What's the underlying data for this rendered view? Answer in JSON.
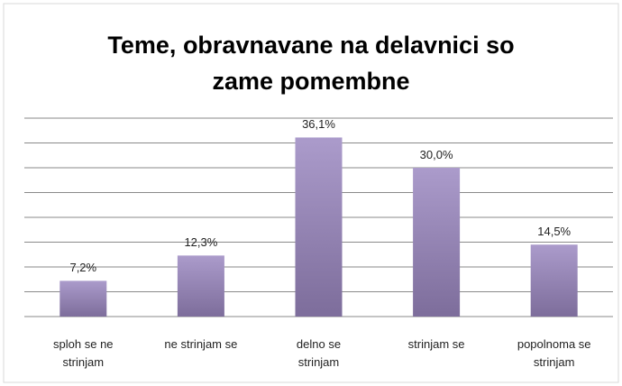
{
  "chart_data": {
    "type": "bar",
    "title": "Teme, obravnavane na delavnici so zame pomembne",
    "categories": [
      "sploh se ne\nstrinjam",
      "ne strinjam se",
      "delno se\nstrinjam",
      "strinjam se",
      "popolnoma se\nstrinjam"
    ],
    "values": [
      7.2,
      12.3,
      36.1,
      30.0,
      14.5
    ],
    "value_labels": [
      "7,2%",
      "12,3%",
      "36,1%",
      "30,0%",
      "14,5%"
    ],
    "color": "#9585b5",
    "ylim": [
      0,
      40
    ],
    "yticks": [
      0,
      5,
      10,
      15,
      20,
      25,
      30,
      35,
      40
    ],
    "grid": true
  }
}
